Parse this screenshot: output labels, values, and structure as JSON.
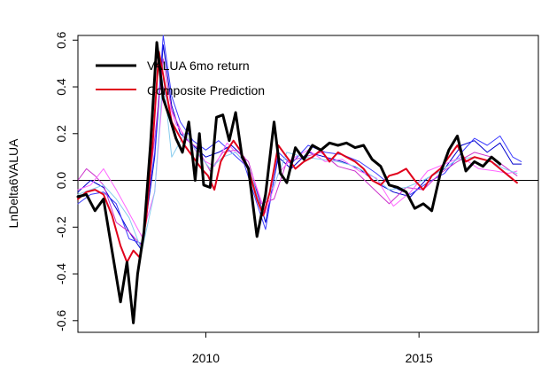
{
  "chart_data": {
    "type": "line",
    "title": "",
    "xlabel": "",
    "ylabel": "LnDelta6VALUA",
    "xlim": [
      2007.0,
      2017.8
    ],
    "ylim": [
      -0.65,
      0.62
    ],
    "x_ticks": [
      {
        "value": 2010,
        "label": "2010"
      },
      {
        "value": 2015,
        "label": "2015"
      }
    ],
    "y_ticks": [
      {
        "value": -0.6,
        "label": "-0.6"
      },
      {
        "value": -0.4,
        "label": "-0.4"
      },
      {
        "value": -0.2,
        "label": "-0.2"
      },
      {
        "value": 0.0,
        "label": "0.0"
      },
      {
        "value": 0.2,
        "label": "0.2"
      },
      {
        "value": 0.4,
        "label": "0.4"
      },
      {
        "value": 0.6,
        "label": "0.6"
      }
    ],
    "reference_line": {
      "y": 0.0,
      "color": "#000000"
    },
    "grid": false,
    "legend": {
      "position": "top-left",
      "entries": [
        {
          "label": "VALUA 6mo return",
          "color": "#000000"
        },
        {
          "label": "Composite Prediction",
          "color": "#e0001b"
        }
      ]
    },
    "series": [
      {
        "name": "VALUA 6mo return",
        "color": "#000000",
        "width": 3,
        "x": [
          2007.0,
          2007.2,
          2007.4,
          2007.6,
          2007.8,
          2008.0,
          2008.15,
          2008.3,
          2008.4,
          2008.55,
          2008.7,
          2008.85,
          2009.0,
          2009.15,
          2009.3,
          2009.45,
          2009.6,
          2009.75,
          2009.85,
          2009.95,
          2010.1,
          2010.25,
          2010.4,
          2010.55,
          2010.7,
          2010.85,
          2011.0,
          2011.2,
          2011.4,
          2011.6,
          2011.75,
          2011.9,
          2012.1,
          2012.3,
          2012.5,
          2012.7,
          2012.9,
          2013.1,
          2013.3,
          2013.5,
          2013.7,
          2013.9,
          2014.1,
          2014.3,
          2014.5,
          2014.7,
          2014.9,
          2015.1,
          2015.3,
          2015.5,
          2015.7,
          2015.9,
          2016.1,
          2016.3,
          2016.5,
          2016.7,
          2016.9
        ],
        "y": [
          -0.07,
          -0.06,
          -0.13,
          -0.08,
          -0.3,
          -0.52,
          -0.35,
          -0.61,
          -0.4,
          -0.22,
          0.15,
          0.59,
          0.35,
          0.27,
          0.18,
          0.12,
          0.25,
          0.0,
          0.2,
          -0.02,
          -0.03,
          0.27,
          0.28,
          0.17,
          0.29,
          0.1,
          0.05,
          -0.24,
          -0.06,
          0.25,
          0.03,
          -0.01,
          0.14,
          0.09,
          0.15,
          0.13,
          0.16,
          0.15,
          0.16,
          0.14,
          0.15,
          0.09,
          0.06,
          -0.02,
          -0.03,
          -0.05,
          -0.12,
          -0.1,
          -0.13,
          0.03,
          0.13,
          0.19,
          0.04,
          0.08,
          0.06,
          0.1,
          0.07
        ]
      },
      {
        "name": "Composite Prediction",
        "color": "#e0001b",
        "width": 2,
        "x": [
          2007.0,
          2007.2,
          2007.4,
          2007.6,
          2007.8,
          2008.0,
          2008.15,
          2008.3,
          2008.45,
          2008.6,
          2008.75,
          2008.9,
          2009.05,
          2009.2,
          2009.35,
          2009.5,
          2009.7,
          2009.9,
          2010.05,
          2010.2,
          2010.35,
          2010.5,
          2010.65,
          2010.8,
          2011.0,
          2011.2,
          2011.35,
          2011.5,
          2011.7,
          2011.9,
          2012.1,
          2012.3,
          2012.5,
          2012.7,
          2012.9,
          2013.1,
          2013.3,
          2013.5,
          2013.7,
          2013.9,
          2014.1,
          2014.3,
          2014.5,
          2014.7,
          2014.9,
          2015.1,
          2015.3,
          2015.5,
          2015.7,
          2015.9,
          2016.1,
          2016.3,
          2016.5,
          2016.7,
          2016.9,
          2017.1,
          2017.3
        ],
        "y": [
          -0.08,
          -0.05,
          -0.04,
          -0.06,
          -0.15,
          -0.28,
          -0.35,
          -0.3,
          -0.33,
          -0.17,
          0.15,
          0.55,
          0.4,
          0.25,
          0.2,
          0.15,
          0.1,
          0.05,
          0.02,
          -0.04,
          0.08,
          0.13,
          0.17,
          0.13,
          0.05,
          -0.08,
          -0.15,
          -0.05,
          0.15,
          0.1,
          0.05,
          0.08,
          0.1,
          0.13,
          0.08,
          0.12,
          0.1,
          0.08,
          0.05,
          0.0,
          -0.02,
          0.02,
          0.03,
          0.05,
          0.0,
          -0.04,
          0.02,
          0.05,
          0.1,
          0.15,
          0.08,
          0.1,
          0.09,
          0.08,
          0.05,
          0.02,
          -0.01
        ]
      },
      {
        "name": "",
        "color": "#0000cc",
        "width": 1,
        "x": [
          2007.0,
          2007.3,
          2007.6,
          2007.9,
          2008.2,
          2008.5,
          2008.8,
          2009.0,
          2009.2,
          2009.4,
          2009.7,
          2010.0,
          2010.3,
          2010.6,
          2010.9,
          2011.2,
          2011.4,
          2011.7,
          2012.0,
          2012.4,
          2012.8,
          2013.2,
          2013.6,
          2014.0,
          2014.4,
          2014.8,
          2015.2,
          2015.6,
          2016.0,
          2016.3,
          2016.6,
          2016.9,
          2017.2,
          2017.4
        ],
        "y": [
          -0.05,
          0.0,
          -0.03,
          -0.12,
          -0.22,
          -0.3,
          0.1,
          0.58,
          0.32,
          0.2,
          0.15,
          0.1,
          0.12,
          0.15,
          0.1,
          -0.05,
          -0.18,
          0.1,
          0.05,
          0.12,
          0.1,
          0.08,
          0.05,
          -0.01,
          -0.05,
          -0.07,
          0.01,
          0.05,
          0.15,
          0.17,
          0.12,
          0.16,
          0.07,
          0.07
        ]
      },
      {
        "name": "",
        "color": "#3b3bff",
        "width": 1,
        "x": [
          2007.0,
          2007.3,
          2007.6,
          2007.9,
          2008.2,
          2008.5,
          2008.8,
          2009.0,
          2009.2,
          2009.4,
          2009.7,
          2010.0,
          2010.3,
          2010.6,
          2010.9,
          2011.2,
          2011.4,
          2011.7,
          2012.0,
          2012.4,
          2012.8,
          2013.2,
          2013.6,
          2014.0,
          2014.4,
          2014.8,
          2015.2,
          2015.6,
          2016.0,
          2016.3,
          2016.6,
          2016.9,
          2017.2,
          2017.4
        ],
        "y": [
          -0.1,
          -0.06,
          -0.05,
          -0.1,
          -0.25,
          -0.27,
          0.12,
          0.62,
          0.36,
          0.25,
          0.17,
          0.13,
          0.17,
          0.12,
          0.07,
          -0.1,
          -0.21,
          0.12,
          0.07,
          0.15,
          0.12,
          0.11,
          0.08,
          0.03,
          -0.03,
          -0.06,
          -0.01,
          0.03,
          0.12,
          0.18,
          0.15,
          0.19,
          0.1,
          0.08
        ]
      },
      {
        "name": "",
        "color": "#cc33cc",
        "width": 1,
        "x": [
          2007.0,
          2007.2,
          2007.4,
          2007.6,
          2007.9,
          2008.2,
          2008.5,
          2008.8,
          2009.0,
          2009.2,
          2009.5,
          2009.8,
          2010.1,
          2010.4,
          2010.7,
          2011.0,
          2011.3,
          2011.6,
          2011.9,
          2012.3,
          2012.7,
          2013.1,
          2013.5,
          2013.9,
          2014.3,
          2014.7,
          2015.1,
          2015.5,
          2015.9,
          2016.3,
          2016.7,
          2017.0,
          2017.3
        ],
        "y": [
          0.0,
          0.05,
          0.02,
          -0.02,
          -0.18,
          -0.22,
          -0.28,
          0.18,
          0.52,
          0.3,
          0.18,
          0.14,
          0.04,
          0.12,
          0.13,
          0.08,
          -0.1,
          -0.08,
          0.08,
          0.1,
          0.12,
          0.06,
          0.04,
          -0.03,
          -0.1,
          -0.03,
          -0.04,
          0.03,
          0.08,
          0.12,
          0.1,
          0.06,
          0.02
        ]
      },
      {
        "name": "",
        "color": "#ff66ff",
        "width": 1,
        "x": [
          2007.0,
          2007.3,
          2007.6,
          2007.9,
          2008.2,
          2008.5,
          2008.8,
          2009.0,
          2009.3,
          2009.6,
          2009.9,
          2010.2,
          2010.5,
          2010.8,
          2011.1,
          2011.4,
          2011.7,
          2012.0,
          2012.4,
          2012.8,
          2013.2,
          2013.6,
          2014.0,
          2014.4,
          2014.8,
          2015.2,
          2015.6,
          2016.0,
          2016.4,
          2016.8,
          2017.1,
          2017.3
        ],
        "y": [
          -0.04,
          -0.02,
          0.05,
          -0.04,
          -0.14,
          -0.24,
          -0.05,
          0.4,
          0.24,
          0.17,
          0.09,
          0.06,
          0.16,
          0.1,
          0.02,
          -0.14,
          0.03,
          0.09,
          0.13,
          0.08,
          0.09,
          0.04,
          0.01,
          -0.11,
          -0.05,
          0.04,
          0.07,
          0.1,
          0.05,
          0.04,
          0.03,
          0.04
        ]
      },
      {
        "name": "",
        "color": "#88ccee",
        "width": 1,
        "x": [
          2007.0,
          2007.3,
          2007.6,
          2007.9,
          2008.2,
          2008.5,
          2008.8,
          2009.0,
          2009.2,
          2009.5,
          2009.8,
          2010.1,
          2010.4,
          2010.7,
          2011.0,
          2011.3,
          2011.6,
          2011.9,
          2012.3,
          2012.7,
          2013.1,
          2013.5,
          2013.9,
          2014.3,
          2014.7,
          2015.1,
          2015.5,
          2015.9,
          2016.3,
          2016.7,
          2017.0,
          2017.3
        ],
        "y": [
          -0.06,
          -0.04,
          -0.02,
          -0.08,
          -0.16,
          -0.3,
          -0.05,
          0.45,
          0.1,
          0.2,
          0.12,
          0.05,
          0.1,
          0.12,
          0.06,
          -0.12,
          -0.02,
          0.12,
          0.1,
          0.09,
          0.08,
          0.06,
          0.02,
          -0.04,
          -0.03,
          0.0,
          0.04,
          0.09,
          0.1,
          0.08,
          0.05,
          0.03
        ]
      }
    ]
  }
}
